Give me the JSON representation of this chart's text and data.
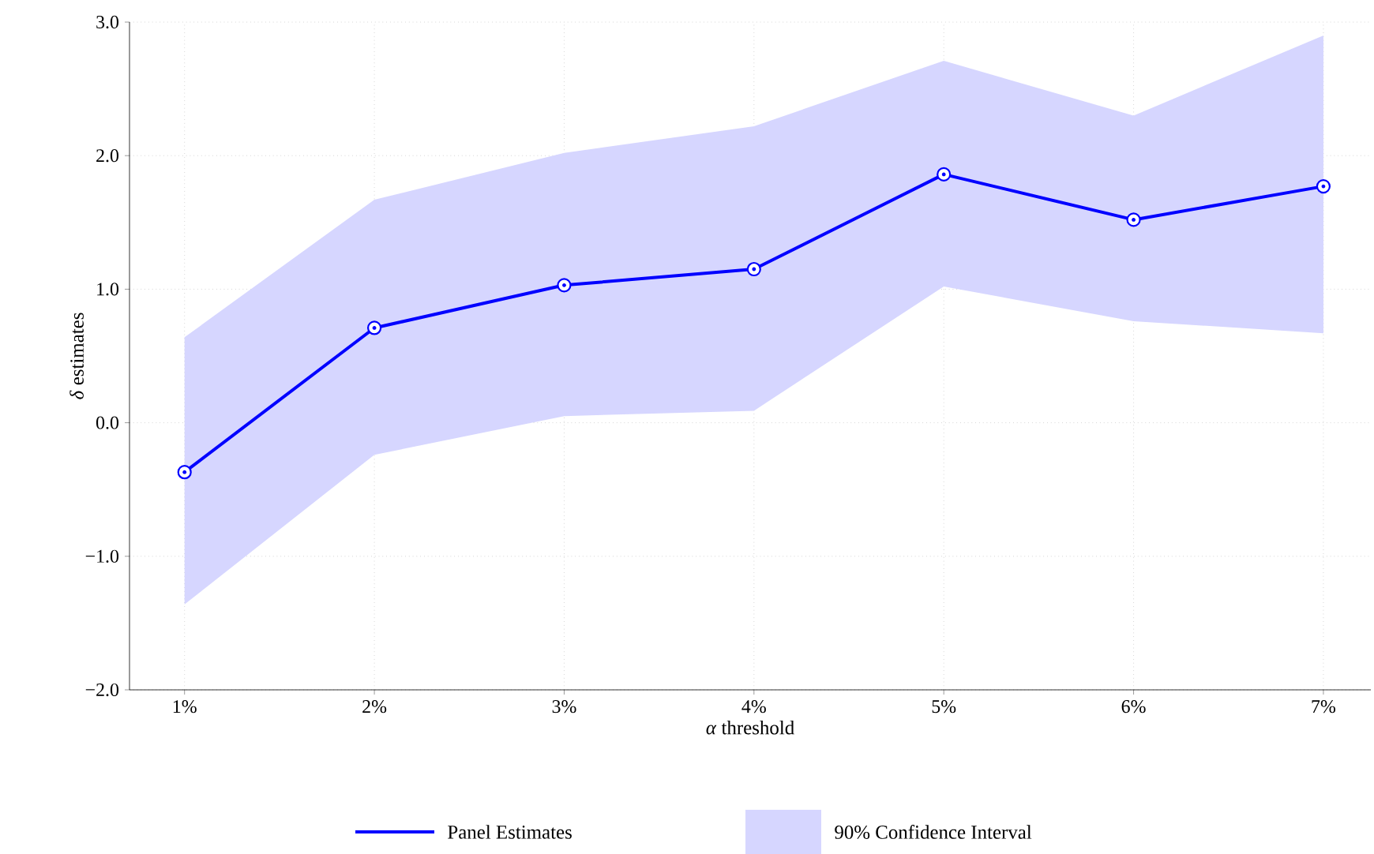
{
  "chart_data": {
    "type": "line",
    "xlabel": "*α* threshold",
    "ylabel": "*δ* estimates",
    "categories": [
      "1%",
      "2%",
      "3%",
      "4%",
      "5%",
      "6%",
      "7%"
    ],
    "series": [
      {
        "name": "Panel Estimates",
        "color": "#0000ff",
        "marker": "circle",
        "values": [
          -0.37,
          0.71,
          1.03,
          1.15,
          1.86,
          1.52,
          1.77
        ],
        "lower": [
          -1.36,
          -0.24,
          0.05,
          0.09,
          1.02,
          0.76,
          0.67
        ],
        "upper": [
          0.64,
          1.67,
          2.02,
          2.22,
          2.71,
          2.3,
          2.9
        ]
      }
    ],
    "annotations": [
      "90% Confidence Interval"
    ],
    "ylim": [
      -2,
      3
    ],
    "yticks": [
      {
        "value": -2,
        "label": "−2.0"
      },
      {
        "value": -1,
        "label": "−1.0"
      },
      {
        "value": 0,
        "label": "0.0"
      },
      {
        "value": 1,
        "label": "1.0"
      },
      {
        "value": 2,
        "label": "2.0"
      },
      {
        "value": 3,
        "label": "3.0"
      }
    ],
    "grid": true,
    "legend": "bottom",
    "line_style": "solid"
  }
}
